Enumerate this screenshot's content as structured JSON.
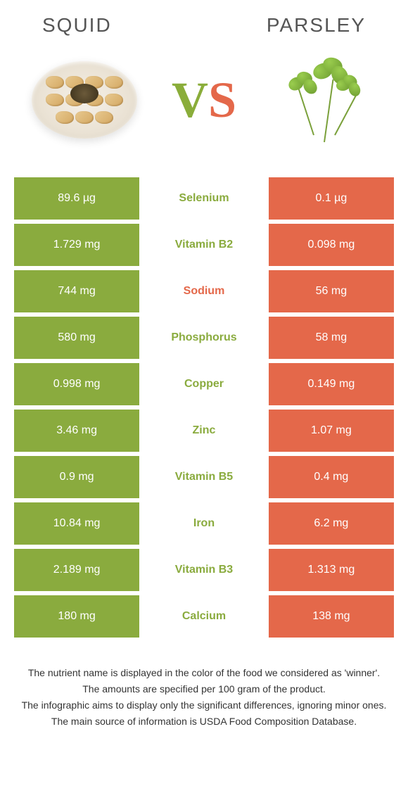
{
  "foods": {
    "left": {
      "name": "Squid",
      "color": "#8aab3e"
    },
    "right": {
      "name": "Parsley",
      "color": "#e4684a"
    }
  },
  "vs": {
    "v": "V",
    "s": "S"
  },
  "colors": {
    "left_bg": "#8aab3e",
    "right_bg": "#e4684a",
    "mid_bg": "#ffffff",
    "row_gap": "#ffffff"
  },
  "rows": [
    {
      "nutrient": "Selenium",
      "left": "89.6 µg",
      "right": "0.1 µg",
      "winner": "left"
    },
    {
      "nutrient": "Vitamin B2",
      "left": "1.729 mg",
      "right": "0.098 mg",
      "winner": "left"
    },
    {
      "nutrient": "Sodium",
      "left": "744 mg",
      "right": "56 mg",
      "winner": "right"
    },
    {
      "nutrient": "Phosphorus",
      "left": "580 mg",
      "right": "58 mg",
      "winner": "left"
    },
    {
      "nutrient": "Copper",
      "left": "0.998 mg",
      "right": "0.149 mg",
      "winner": "left"
    },
    {
      "nutrient": "Zinc",
      "left": "3.46 mg",
      "right": "1.07 mg",
      "winner": "left"
    },
    {
      "nutrient": "Vitamin B5",
      "left": "0.9 mg",
      "right": "0.4 mg",
      "winner": "left"
    },
    {
      "nutrient": "Iron",
      "left": "10.84 mg",
      "right": "6.2 mg",
      "winner": "left"
    },
    {
      "nutrient": "Vitamin B3",
      "left": "2.189 mg",
      "right": "1.313 mg",
      "winner": "left"
    },
    {
      "nutrient": "Calcium",
      "left": "180 mg",
      "right": "138 mg",
      "winner": "left"
    }
  ],
  "footnotes": [
    "The nutrient name is displayed in the color of the food we considered as 'winner'.",
    "The amounts are specified per 100 gram of the product.",
    "The infographic aims to display only the significant differences, ignoring minor ones.",
    "The main source of information is USDA Food Composition Database."
  ]
}
